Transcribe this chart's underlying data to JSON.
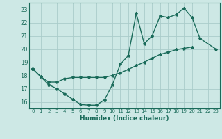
{
  "xlabel": "Humidex (Indice chaleur)",
  "xlim": [
    -0.5,
    23.5
  ],
  "ylim": [
    15.5,
    23.5
  ],
  "yticks": [
    16,
    17,
    18,
    19,
    20,
    21,
    22,
    23
  ],
  "xticks": [
    0,
    1,
    2,
    3,
    4,
    5,
    6,
    7,
    8,
    9,
    10,
    11,
    12,
    13,
    14,
    15,
    16,
    17,
    18,
    19,
    20,
    21,
    22,
    23
  ],
  "background_color": "#cde8e5",
  "grid_color": "#aaccca",
  "line_color": "#1a6b5a",
  "curve1_x": [
    0,
    1,
    2,
    3,
    4,
    5,
    6,
    7,
    8,
    9,
    10,
    11,
    12,
    13,
    14,
    15,
    16,
    17,
    18,
    19,
    20,
    21,
    23
  ],
  "curve1_y": [
    18.5,
    17.9,
    17.3,
    17.0,
    16.6,
    16.2,
    15.8,
    15.75,
    15.75,
    16.15,
    17.3,
    18.85,
    19.5,
    22.7,
    20.4,
    21.0,
    22.5,
    22.4,
    22.6,
    23.1,
    22.4,
    20.8,
    20.0
  ],
  "curve2_x": [
    0,
    1,
    2,
    3,
    4,
    5,
    6,
    7,
    8,
    9,
    10,
    11,
    12,
    13,
    14,
    15,
    16,
    17,
    18,
    19,
    20
  ],
  "curve2_y": [
    18.5,
    17.9,
    17.5,
    17.5,
    17.75,
    17.85,
    17.85,
    17.85,
    17.85,
    17.85,
    18.0,
    18.2,
    18.45,
    18.75,
    19.0,
    19.3,
    19.6,
    19.75,
    19.95,
    20.05,
    20.15
  ],
  "marker_size": 3,
  "line_width": 1.0
}
